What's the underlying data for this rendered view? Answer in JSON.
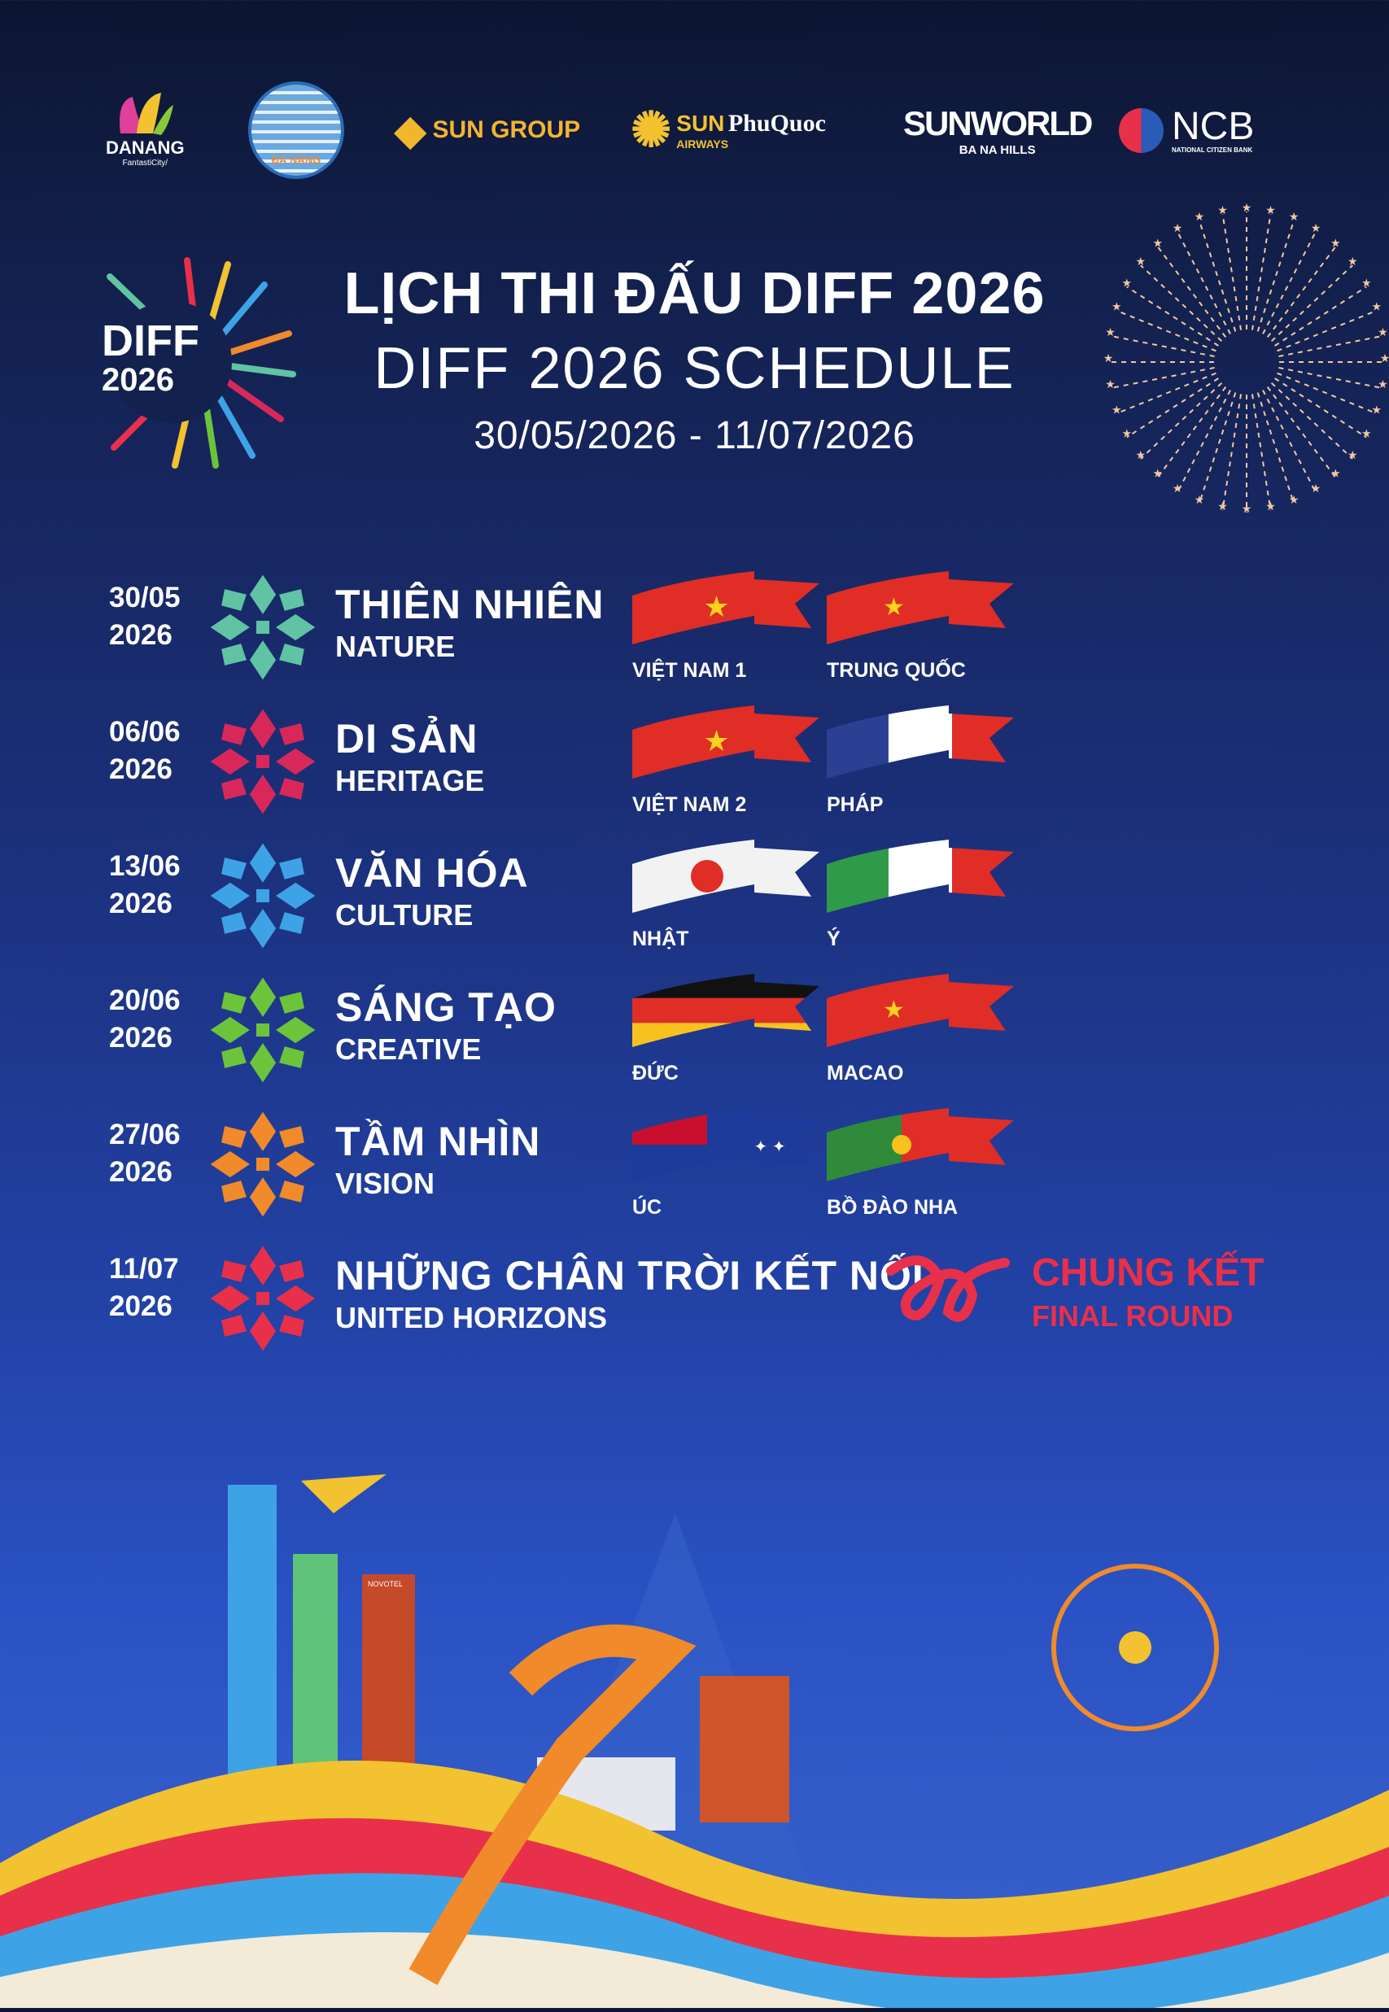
{
  "sponsors": [
    {
      "name": "danang-fantasticity-logo",
      "text": "DANANG",
      "sub": "FantastiCity/"
    },
    {
      "name": "da-nang-city-seal",
      "text": "ĐÀ NẴNG"
    },
    {
      "name": "sun-group-logo",
      "text": "SUN GROUP"
    },
    {
      "name": "sun-phuquoc-airways-logo",
      "text": "SUN",
      "text2": "PhuQuoc",
      "sub": "AIRWAYS"
    },
    {
      "name": "sunworld-logo",
      "text": "SUNWORLD",
      "sub": "BA NA HILLS"
    },
    {
      "name": "ncb-logo",
      "text": "NCB",
      "sub": "NATIONAL CITIZEN BANK"
    }
  ],
  "event_logo": {
    "text": "DIFF",
    "year": "2026"
  },
  "header": {
    "title_vi": "LỊCH THI ĐẤU DIFF 2026",
    "title_en": "DIFF 2026 SCHEDULE",
    "date_range": "30/05/2026 - 11/07/2026"
  },
  "schedule": [
    {
      "date": "30/05",
      "year": "2026",
      "theme_vi": "THIÊN NHIÊN",
      "theme_en": "NATURE",
      "color": "#5fc3a4",
      "teams": [
        {
          "label": "VIỆT NAM 1",
          "flag": "vietnam"
        },
        {
          "label": "TRUNG QUỐC",
          "flag": "china"
        }
      ]
    },
    {
      "date": "06/06",
      "year": "2026",
      "theme_vi": "DI SẢN",
      "theme_en": "HERITAGE",
      "color": "#d8285a",
      "teams": [
        {
          "label": "VIỆT NAM 2",
          "flag": "vietnam"
        },
        {
          "label": "PHÁP",
          "flag": "france"
        }
      ]
    },
    {
      "date": "13/06",
      "year": "2026",
      "theme_vi": "VĂN HÓA",
      "theme_en": "CULTURE",
      "color": "#3ea3e6",
      "teams": [
        {
          "label": "NHẬT",
          "flag": "japan"
        },
        {
          "label": "Ý",
          "flag": "italy"
        }
      ]
    },
    {
      "date": "20/06",
      "year": "2026",
      "theme_vi": "SÁNG TẠO",
      "theme_en": "CREATIVE",
      "color": "#6cc43a",
      "teams": [
        {
          "label": "ĐỨC",
          "flag": "germany"
        },
        {
          "label": "MACAO",
          "flag": "china"
        }
      ]
    },
    {
      "date": "27/06",
      "year": "2026",
      "theme_vi": "TẦM NHÌN",
      "theme_en": "VISION",
      "color": "#f08a2a",
      "teams": [
        {
          "label": "ÚC",
          "flag": "australia"
        },
        {
          "label": "BỒ ĐÀO NHA",
          "flag": "portugal"
        }
      ]
    },
    {
      "date": "11/07",
      "year": "2026",
      "theme_vi": "NHỮNG CHÂN TRỜI KẾT NỐI",
      "theme_en": "UNITED HORIZONS",
      "color": "#e8304a",
      "final_vi": "CHUNG KẾT",
      "final_en": "FINAL ROUND"
    }
  ],
  "illustration_labels": {
    "hotel": "NOVOTEL"
  },
  "colors": {
    "background_top": "#0d1532",
    "background_bottom": "#3a62cc",
    "accent_red": "#e8304a",
    "gold": "#f2c230"
  }
}
